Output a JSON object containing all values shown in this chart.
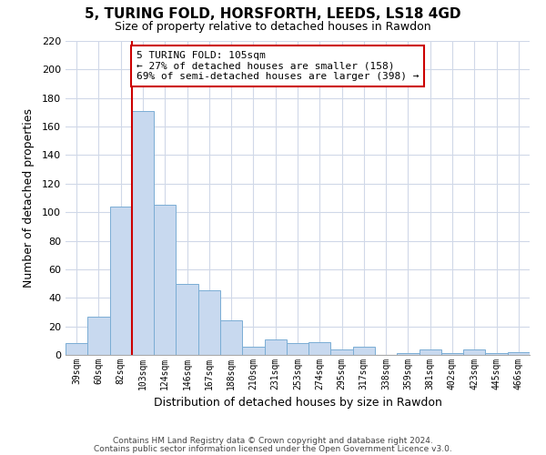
{
  "title": "5, TURING FOLD, HORSFORTH, LEEDS, LS18 4GD",
  "subtitle": "Size of property relative to detached houses in Rawdon",
  "xlabel": "Distribution of detached houses by size in Rawdon",
  "ylabel": "Number of detached properties",
  "bar_color": "#c8d9ef",
  "bar_edge_color": "#7aadd4",
  "categories": [
    "39sqm",
    "60sqm",
    "82sqm",
    "103sqm",
    "124sqm",
    "146sqm",
    "167sqm",
    "188sqm",
    "210sqm",
    "231sqm",
    "253sqm",
    "274sqm",
    "295sqm",
    "317sqm",
    "338sqm",
    "359sqm",
    "381sqm",
    "402sqm",
    "423sqm",
    "445sqm",
    "466sqm"
  ],
  "values": [
    8,
    27,
    104,
    171,
    105,
    50,
    45,
    24,
    6,
    11,
    8,
    9,
    4,
    6,
    0,
    1,
    4,
    1,
    4,
    1,
    2
  ],
  "ylim": [
    0,
    220
  ],
  "yticks": [
    0,
    20,
    40,
    60,
    80,
    100,
    120,
    140,
    160,
    180,
    200,
    220
  ],
  "vline_index": 3,
  "vline_color": "#cc0000",
  "annotation_line1": "5 TURING FOLD: 105sqm",
  "annotation_line2": "← 27% of detached houses are smaller (158)",
  "annotation_line3": "69% of semi-detached houses are larger (398) →",
  "annotation_box_edge_color": "#cc0000",
  "footer_line1": "Contains HM Land Registry data © Crown copyright and database right 2024.",
  "footer_line2": "Contains public sector information licensed under the Open Government Licence v3.0.",
  "background_color": "#ffffff",
  "grid_color": "#d0d8e8"
}
